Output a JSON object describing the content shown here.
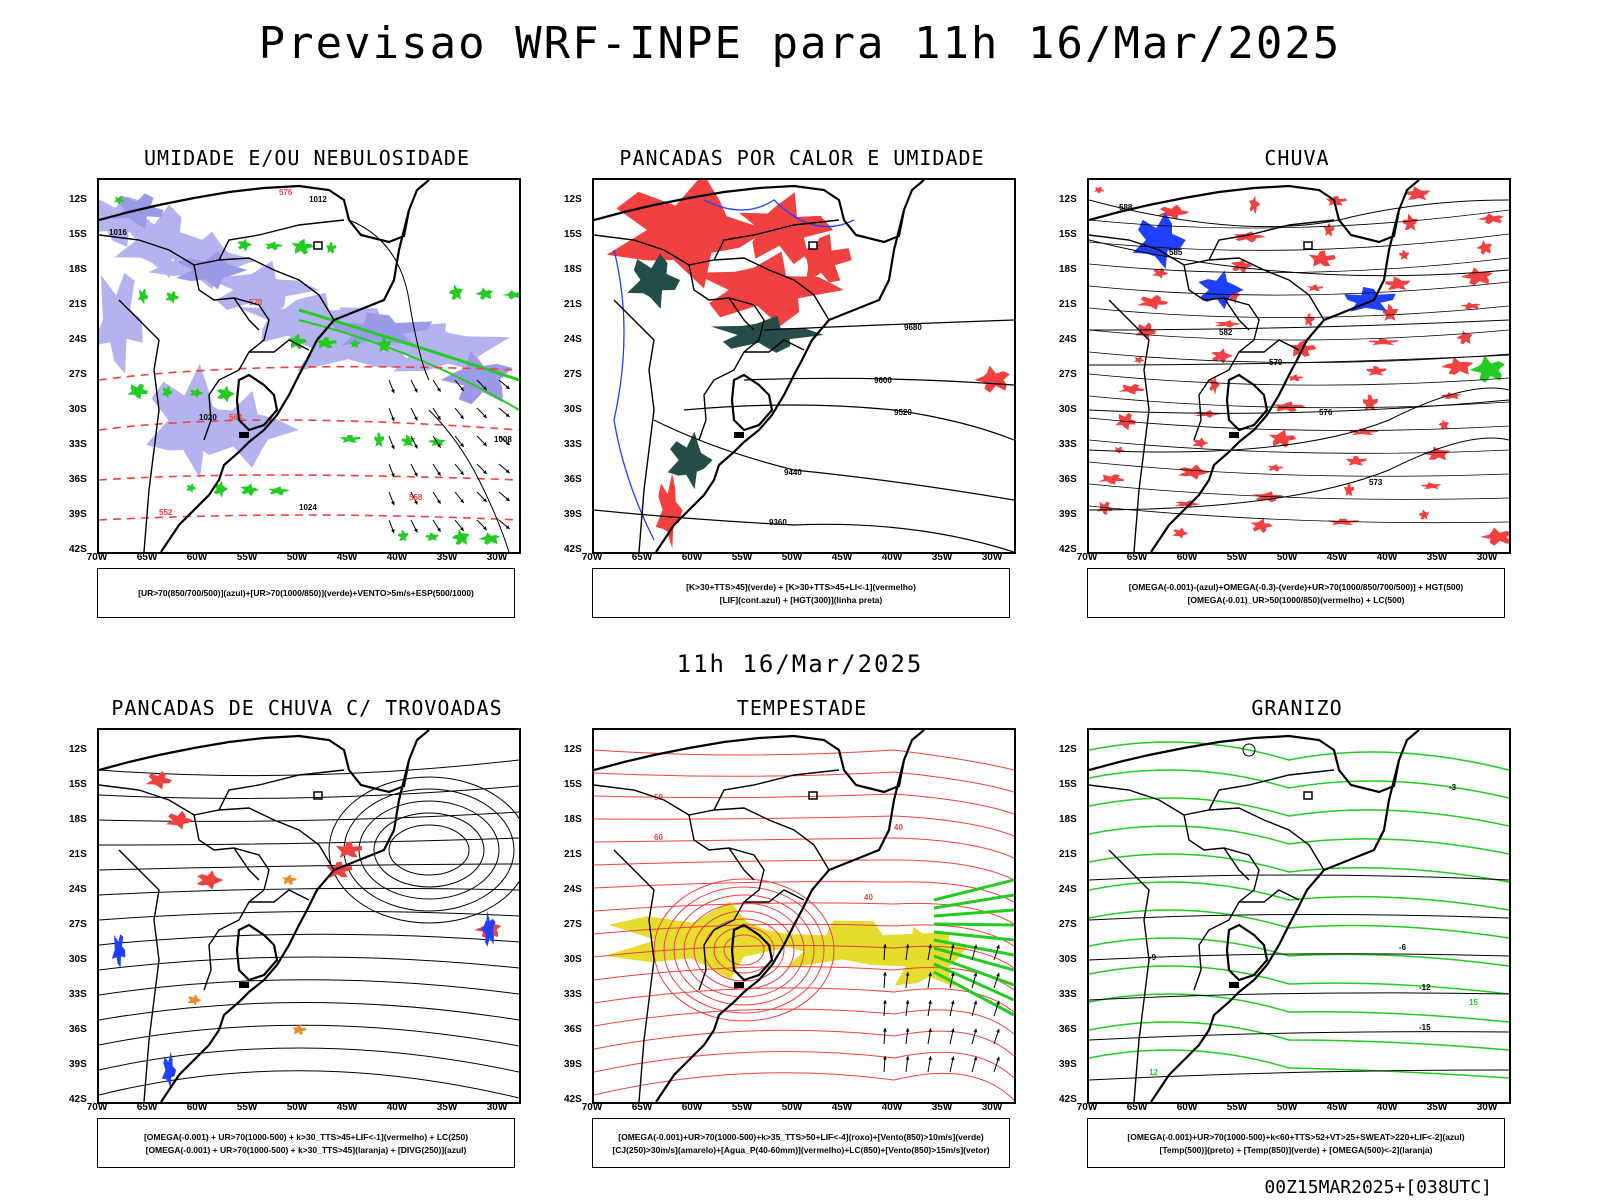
{
  "header": {
    "title": "Previsao WRF-INPE  para 11h 16/Mar/2025"
  },
  "middle": {
    "title": "11h 16/Mar/2025"
  },
  "footer": {
    "run": "00Z15MAR2025+[038UTC]"
  },
  "axes": {
    "lat": [
      "12S",
      "15S",
      "18S",
      "21S",
      "24S",
      "27S",
      "30S",
      "33S",
      "36S",
      "39S",
      "42S"
    ],
    "lon": [
      "70W",
      "65W",
      "60W",
      "55W",
      "50W",
      "45W",
      "40W",
      "35W",
      "30W"
    ]
  },
  "panels": [
    {
      "title": "UMIDADE E/OU NEBULOSIDADE",
      "legend": [
        "[UR>70(850/700/500)](azul)+[UR>70(1000/850)](verde)+VENTO>5m/s+ESP(500/1000)"
      ],
      "labels": [
        "1012",
        "1016",
        "1020",
        "1024",
        "1008",
        "576",
        "570",
        "564",
        "558",
        "552"
      ]
    },
    {
      "title": "PANCADAS POR CALOR E UMIDADE",
      "legend": [
        "[K>30+TTS>45](verde) + [K>30+TTS>45+LI<-1](vermelho)",
        "[LIF](cont.azul) + [HGT(300)](linha preta)"
      ],
      "labels": [
        "9680",
        "9600",
        "9520",
        "9440",
        "9360"
      ]
    },
    {
      "title": "CHUVA",
      "legend": [
        "[OMEGA(-0.001)-(azul)+OMEGA(-0.3)-(verde)+UR>70(1000/850/700/500)] + HGT(500)",
        "[OMEGA(-0.01)_UR>50(1000/850)(vermelho) + LC(500)"
      ],
      "labels": [
        "588",
        "585",
        "582",
        "579",
        "576",
        "573"
      ]
    },
    {
      "title": "PANCADAS DE CHUVA C/ TROVOADAS",
      "legend": [
        "[OMEGA(-0.001) + UR>70(1000-500) + k>30_TTS>45+LIF<-1](vermelho) + LC(250)",
        "[OMEGA(-0.001) + UR>70(1000-500) + k>30_TTS>45](laranja) + [DIVG(250)](azul)"
      ],
      "labels": []
    },
    {
      "title": "TEMPESTADE",
      "legend": [
        "[OMEGA(-0.001)+UR>70(1000-500)+k>35_TTS>50+LIF<-4](roxo)+[Vento(850)>10m/s](verde)",
        "[CJ(250)>30m/s](amarelo)+[Agua_P(40-60mm)](vermelho)+LC(850)+[Vento(850)>15m/s](vetor)"
      ],
      "labels": [
        "40",
        "50",
        "60"
      ]
    },
    {
      "title": "GRANIZO",
      "legend": [
        "[OMEGA(-0.001)+UR>70(1000-500)+k<60+TTS>52+VT>25+SWEAT>220+LIF<-2](azul)",
        "[Temp(500)](preto) + [Temp(850)](verde) + [OMEGA(500)<-2](laranja)"
      ],
      "labels": [
        "-3",
        "-6",
        "-9",
        "-12",
        "-15",
        "15",
        "12"
      ]
    }
  ],
  "colors": {
    "humid_blue": "#b3b3f0",
    "humid_blue_dark": "#9a9ae6",
    "green": "#22cc22",
    "red": "#f04040",
    "dark_teal": "#244c48",
    "yellow": "#e6dc2e",
    "orange": "#f08c28",
    "blue": "#2040ff"
  }
}
